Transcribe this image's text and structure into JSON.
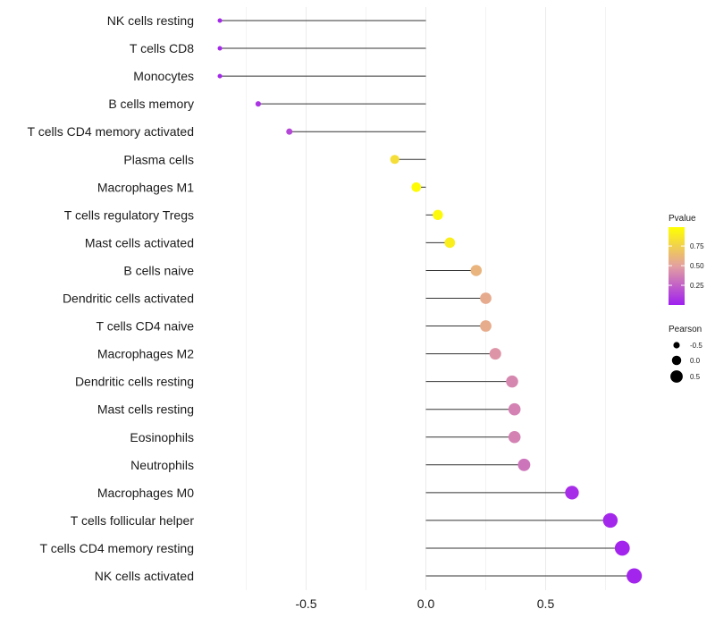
{
  "chart_data": {
    "type": "lollipop",
    "title": "",
    "xlabel": "",
    "ylabel": "",
    "xlim": [
      -1.0,
      0.98
    ],
    "x_ticks": [
      -0.5,
      0.0,
      0.5
    ],
    "x_tick_labels": [
      "-0.5",
      "0.0",
      "0.5"
    ],
    "grid": true,
    "categories": [
      "NK cells resting",
      "T cells CD8",
      "Monocytes",
      "B cells memory",
      "T cells CD4 memory activated",
      "Plasma cells",
      "Macrophages M1",
      "T cells regulatory  Tregs ",
      "Mast cells activated",
      "B cells naive",
      "Dendritic cells activated",
      "T cells CD4 naive",
      "Macrophages M2",
      "Dendritic cells resting",
      "Mast cells resting",
      "Eosinophils",
      "Neutrophils",
      "Macrophages M0",
      "T cells follicular helper",
      "T cells CD4 memory resting",
      "NK cells activated"
    ],
    "pearson": [
      -0.86,
      -0.86,
      -0.86,
      -0.7,
      -0.57,
      -0.13,
      -0.04,
      0.05,
      0.1,
      0.21,
      0.25,
      0.25,
      0.29,
      0.36,
      0.37,
      0.37,
      0.41,
      0.61,
      0.77,
      0.82,
      0.87
    ],
    "pvalue": [
      0.03,
      0.03,
      0.03,
      0.08,
      0.15,
      0.82,
      0.97,
      0.96,
      0.9,
      0.6,
      0.55,
      0.56,
      0.45,
      0.4,
      0.38,
      0.38,
      0.33,
      0.05,
      0.03,
      0.02,
      0.02
    ],
    "legend": {
      "placement": "right",
      "color_title": "Pvalue",
      "color_ticks": [
        0.75,
        0.5,
        0.25
      ],
      "color_tick_labels": [
        "0.75",
        "0.50",
        "0.25"
      ],
      "color_range": [
        0.0,
        0.99
      ],
      "size_title": "Pearson",
      "size_values": [
        -0.5,
        0.0,
        0.5
      ],
      "size_labels": [
        "-0.5",
        "0.0",
        "0.5"
      ]
    },
    "colors": {
      "low": "#A020F0",
      "high": "#FFFF00",
      "line": "#333333",
      "grid": "#EBEBEB"
    }
  }
}
